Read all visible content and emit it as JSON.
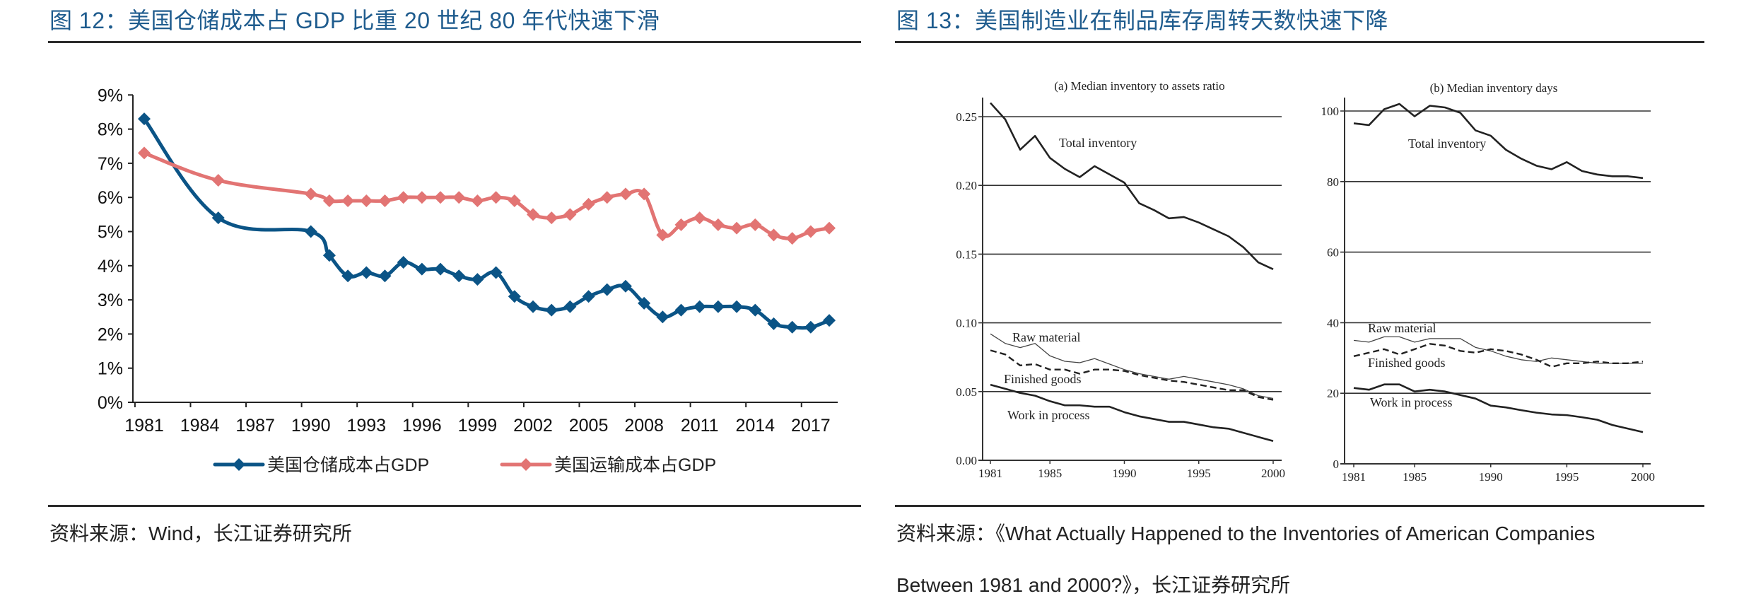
{
  "figures": [
    {
      "title": "图  12：美国仓储成本占 GDP 比重 20 世纪 80 年代快速下滑",
      "source": "资料来源：Wind，长江证券研究所"
    },
    {
      "title": "图  13：美国制造业在制品库存周转天数快速下降",
      "source_line1": "资料来源：《What Actually Happened to the Inventories of American Companies",
      "source_line2": "Between 1981 and 2000?》，长江证券研究所"
    }
  ],
  "chart_data": [
    {
      "type": "line",
      "title": "",
      "xlabel": "",
      "ylabel": "",
      "ylim": [
        0,
        9
      ],
      "y_ticks": [
        "0%",
        "1%",
        "2%",
        "3%",
        "4%",
        "5%",
        "6%",
        "7%",
        "8%",
        "9%"
      ],
      "x_range": [
        1981,
        2018
      ],
      "x_ticks": [
        "1981",
        "1984",
        "1987",
        "1990",
        "1993",
        "1996",
        "1999",
        "2002",
        "2005",
        "2008",
        "2011",
        "2014",
        "2017"
      ],
      "grid": false,
      "legend_position": "bottom",
      "x": [
        1981,
        1985,
        1990,
        1991,
        1992,
        1993,
        1994,
        1995,
        1996,
        1997,
        1998,
        1999,
        2000,
        2001,
        2002,
        2003,
        2004,
        2005,
        2006,
        2007,
        2008,
        2009,
        2010,
        2011,
        2012,
        2013,
        2014,
        2015,
        2016,
        2017,
        2018
      ],
      "series": [
        {
          "name": "美国仓储成本占GDP",
          "color": "#0b5486",
          "marker": "diamond",
          "unit": "%",
          "values": [
            8.3,
            5.4,
            5.0,
            4.3,
            3.7,
            3.8,
            3.7,
            4.1,
            3.9,
            3.9,
            3.7,
            3.6,
            3.8,
            3.1,
            2.8,
            2.7,
            2.8,
            3.1,
            3.3,
            3.4,
            2.9,
            2.5,
            2.7,
            2.8,
            2.8,
            2.8,
            2.7,
            2.3,
            2.2,
            2.2,
            2.4
          ]
        },
        {
          "name": "美国运输成本占GDP",
          "color": "#e27473",
          "marker": "diamond",
          "unit": "%",
          "values": [
            7.3,
            6.5,
            6.1,
            5.9,
            5.9,
            5.9,
            5.9,
            6.0,
            6.0,
            6.0,
            6.0,
            5.9,
            6.0,
            5.9,
            5.5,
            5.4,
            5.5,
            5.8,
            6.0,
            6.1,
            6.1,
            4.9,
            5.2,
            5.4,
            5.2,
            5.1,
            5.2,
            4.9,
            4.8,
            5.0,
            5.1
          ]
        }
      ]
    },
    {
      "type": "line",
      "title": "(a) Median inventory to assets ratio",
      "xlabel": "",
      "ylabel": "",
      "ylim": [
        0,
        0.25
      ],
      "y_ticks": [
        "0.00",
        "0.05",
        "0.10",
        "0.15",
        "0.20",
        "0.25"
      ],
      "x_ticks": [
        "1981",
        "1985",
        "1990",
        "1995",
        "2000"
      ],
      "grid": true,
      "x": [
        1981,
        1982,
        1983,
        1984,
        1985,
        1986,
        1987,
        1988,
        1989,
        1990,
        1991,
        1992,
        1993,
        1994,
        1995,
        1996,
        1997,
        1998,
        1999,
        2000
      ],
      "series": [
        {
          "name": "Total inventory",
          "style": "solid-thick",
          "values": [
            0.26,
            0.248,
            0.226,
            0.236,
            0.22,
            0.212,
            0.206,
            0.214,
            0.208,
            0.202,
            0.187,
            0.182,
            0.176,
            0.177,
            0.173,
            0.168,
            0.163,
            0.155,
            0.144,
            0.139
          ]
        },
        {
          "name": "Raw material",
          "style": "solid-thin",
          "values": [
            0.092,
            0.085,
            0.082,
            0.085,
            0.076,
            0.072,
            0.071,
            0.074,
            0.07,
            0.066,
            0.063,
            0.061,
            0.059,
            0.061,
            0.059,
            0.057,
            0.055,
            0.052,
            0.047,
            0.045
          ]
        },
        {
          "name": "Finished goods",
          "style": "dashed",
          "values": [
            0.08,
            0.077,
            0.069,
            0.07,
            0.066,
            0.066,
            0.063,
            0.066,
            0.066,
            0.065,
            0.062,
            0.06,
            0.058,
            0.057,
            0.055,
            0.053,
            0.051,
            0.051,
            0.046,
            0.044
          ]
        },
        {
          "name": "Work in process",
          "style": "solid-thick",
          "values": [
            0.055,
            0.052,
            0.049,
            0.047,
            0.043,
            0.04,
            0.04,
            0.039,
            0.039,
            0.035,
            0.032,
            0.03,
            0.028,
            0.028,
            0.026,
            0.024,
            0.023,
            0.02,
            0.017,
            0.014
          ]
        }
      ]
    },
    {
      "type": "line",
      "title": "(b) Median inventory days",
      "xlabel": "",
      "ylabel": "",
      "ylim": [
        0,
        100
      ],
      "y_ticks": [
        "0",
        "20",
        "40",
        "60",
        "80",
        "100"
      ],
      "x_ticks": [
        "1981",
        "1985",
        "1990",
        "1995",
        "2000"
      ],
      "grid": true,
      "x": [
        1981,
        1982,
        1983,
        1984,
        1985,
        1986,
        1987,
        1988,
        1989,
        1990,
        1991,
        1992,
        1993,
        1994,
        1995,
        1996,
        1997,
        1998,
        1999,
        2000
      ],
      "series": [
        {
          "name": "Total inventory",
          "style": "solid-thick",
          "values": [
            96.5,
            96,
            100.5,
            102,
            98.5,
            101.5,
            101,
            99.5,
            94.5,
            93,
            89,
            86.5,
            84.5,
            83.5,
            85.5,
            83,
            82,
            81.5,
            81.5,
            81
          ]
        },
        {
          "name": "Raw material",
          "style": "solid-thin",
          "values": [
            35,
            34.5,
            36,
            36,
            34.5,
            35.5,
            35.5,
            35.5,
            33,
            32,
            30.5,
            29.5,
            29,
            30,
            29.5,
            29,
            28.5,
            28.5,
            28.5,
            28.5
          ]
        },
        {
          "name": "Finished goods",
          "style": "dashed",
          "values": [
            30.5,
            31.5,
            32.5,
            31,
            32.5,
            34,
            33.5,
            32,
            31.5,
            32.5,
            32,
            31,
            29.5,
            27.5,
            28.5,
            28.5,
            29,
            28.5,
            28.5,
            29
          ]
        },
        {
          "name": "Work in process",
          "style": "solid-thick",
          "values": [
            21.5,
            21,
            22.5,
            22.5,
            20.5,
            21,
            20.5,
            19.5,
            18.5,
            16.5,
            16,
            15.2,
            14.5,
            14,
            13.8,
            13.2,
            12.5,
            11,
            10,
            9
          ]
        }
      ]
    }
  ]
}
